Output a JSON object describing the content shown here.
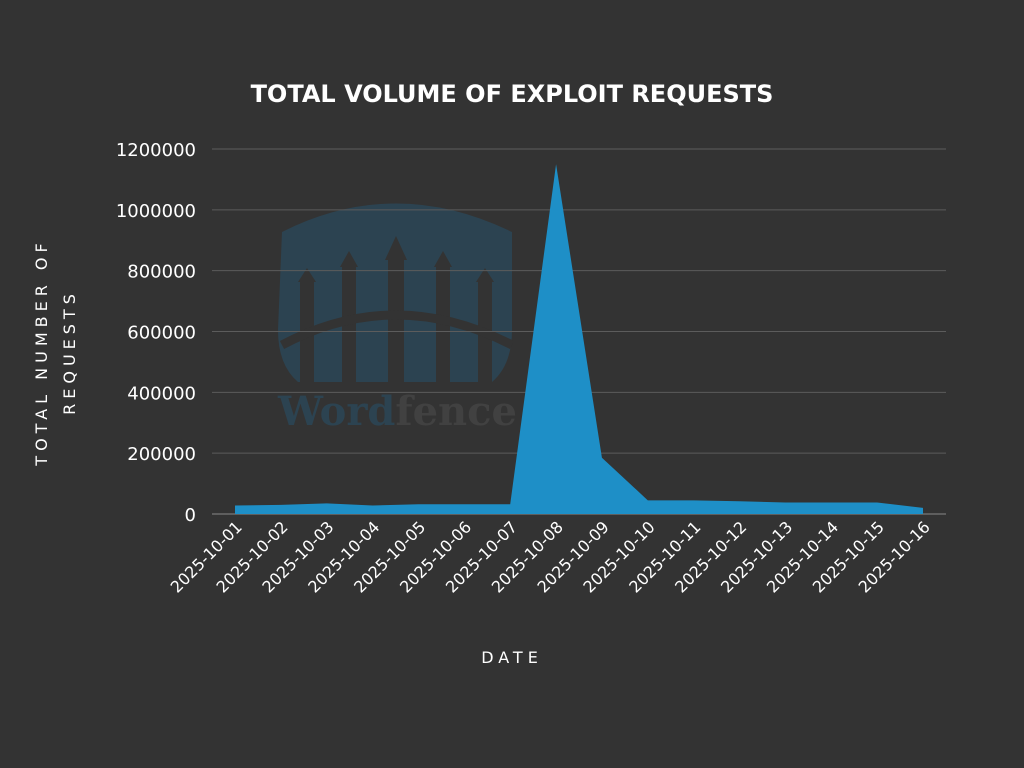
{
  "chart_data": {
    "type": "area",
    "title": "TOTAL VOLUME OF EXPLOIT REQUESTS",
    "xlabel": "DATE",
    "ylabel_lines": [
      "TOTAL NUMBER OF",
      "REQUESTS"
    ],
    "categories": [
      "2025-10-01",
      "2025-10-02",
      "2025-10-03",
      "2025-10-04",
      "2025-10-05",
      "2025-10-06",
      "2025-10-07",
      "2025-10-08",
      "2025-10-09",
      "2025-10-10",
      "2025-10-11",
      "2025-10-12",
      "2025-10-13",
      "2025-10-14",
      "2025-10-15",
      "2025-10-16"
    ],
    "values": [
      28000,
      30000,
      35000,
      28000,
      32000,
      32000,
      32000,
      1150000,
      185000,
      45000,
      45000,
      42000,
      38000,
      38000,
      38000,
      20000
    ],
    "ylim": [
      0,
      1200000
    ],
    "yticks": [
      0,
      200000,
      400000,
      600000,
      800000,
      1000000,
      1200000
    ],
    "grid": true,
    "colors": {
      "background": "#333333",
      "area": "#1e8fc7",
      "grid": "#5c5c5c",
      "text": "#ffffff"
    },
    "watermark": {
      "brand": "Wordfence",
      "part1": "Word",
      "part2": "fence"
    }
  }
}
